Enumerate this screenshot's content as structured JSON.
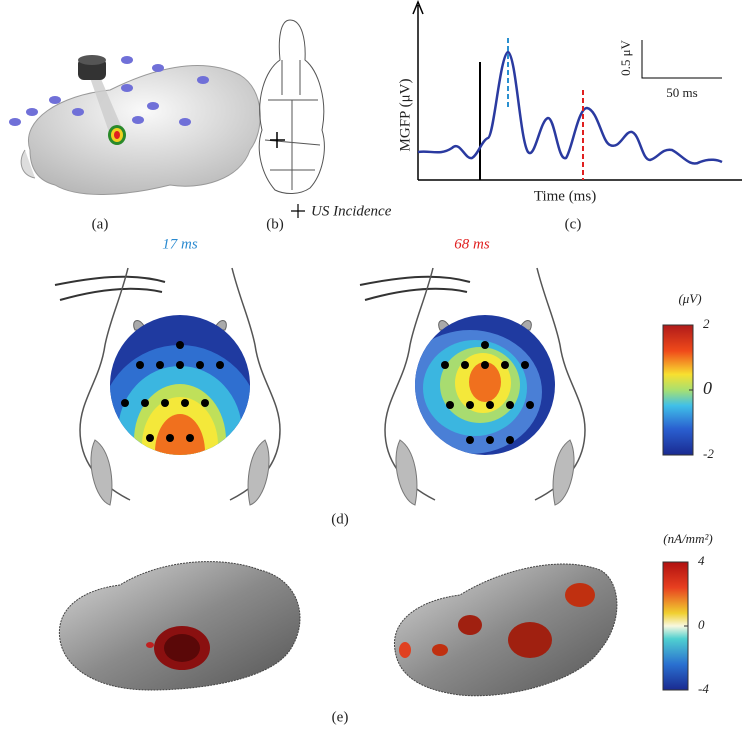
{
  "panel_a": {
    "label": "(a)"
  },
  "panel_b": {
    "label": "(b)",
    "legend": "US Incidence"
  },
  "panel_c": {
    "label": "(c)",
    "y_label": "MGFP (μV)",
    "x_label": "Time (ms)",
    "scale_v": "0.5 μV",
    "scale_t": "50 ms"
  },
  "panel_d": {
    "label": "(d)",
    "left_title": "17 ms",
    "right_title": "68 ms",
    "colorbar": {
      "unit": "(μV)",
      "ticks": [
        2,
        0,
        -2
      ]
    }
  },
  "panel_e": {
    "label": "(e)",
    "colorbar": {
      "unit": "(nA/mm²)",
      "ticks": [
        4,
        0,
        -4
      ]
    }
  }
}
